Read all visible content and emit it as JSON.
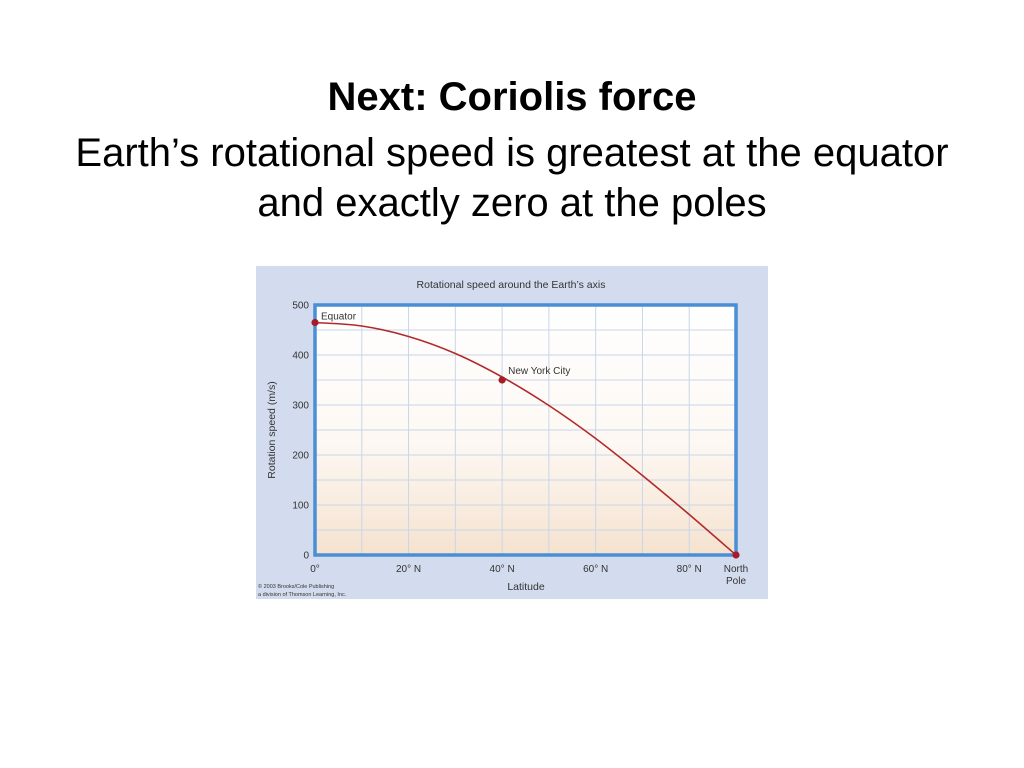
{
  "slide": {
    "title": "Next: Coriolis force",
    "subtitle": "Earth’s rotational speed is greatest at the equator and exactly zero at the poles"
  },
  "chart_data": {
    "type": "line",
    "title": "Rotational speed around the Earth’s axis",
    "xlabel": "Latitude",
    "ylabel": "Rotation speed (m/s)",
    "x_ticks": [
      "0°",
      "20° N",
      "40° N",
      "60° N",
      "80° N",
      "North Pole"
    ],
    "y_ticks": [
      "0",
      "100",
      "200",
      "300",
      "400",
      "500"
    ],
    "xlim": [
      0,
      90
    ],
    "ylim": [
      0,
      500
    ],
    "grid": true,
    "series": [
      {
        "x": [
          0,
          10,
          20,
          30,
          40,
          50,
          60,
          70,
          80,
          90
        ],
        "y": [
          465,
          458,
          437,
          403,
          356,
          299,
          233,
          159,
          81,
          0
        ],
        "color": "#b22a2a"
      }
    ],
    "annotations": [
      {
        "label": "Equator",
        "x": 0,
        "y": 465
      },
      {
        "label": "New York City",
        "x": 40,
        "y": 350
      },
      {
        "label": "",
        "x": 90,
        "y": 0
      }
    ],
    "credit": [
      "© 2003 Brooks/Cole Publishing",
      "a division of Thomson Learning, Inc."
    ],
    "colors": {
      "panel_bg": "#d3dcee",
      "plot_border": "#4a8fd6",
      "grid": "#c8d6ea",
      "curve": "#b22a2a",
      "point": "#a51c2a"
    }
  }
}
